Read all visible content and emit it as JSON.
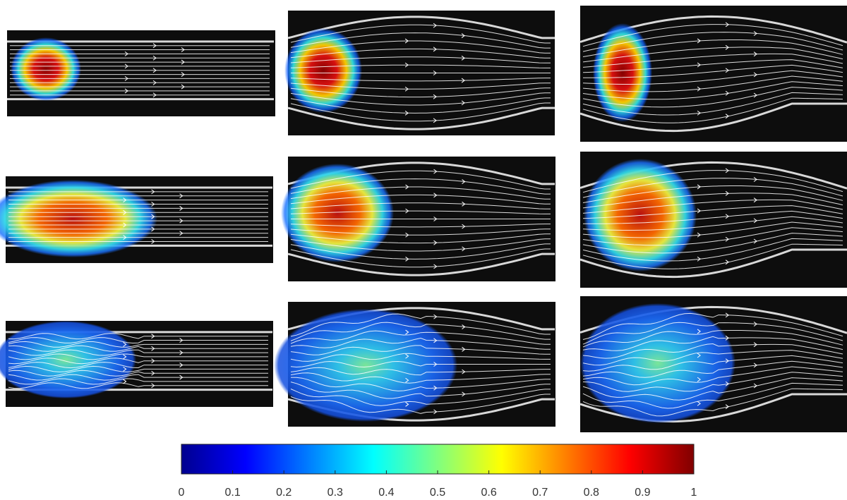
{
  "colorbar": {
    "colormap": "jet",
    "lim": [
      0,
      1
    ],
    "ticks": [
      0,
      0.1,
      0.2,
      0.3,
      0.4,
      0.5,
      0.6,
      0.7,
      0.8,
      0.9,
      1
    ]
  }
}
